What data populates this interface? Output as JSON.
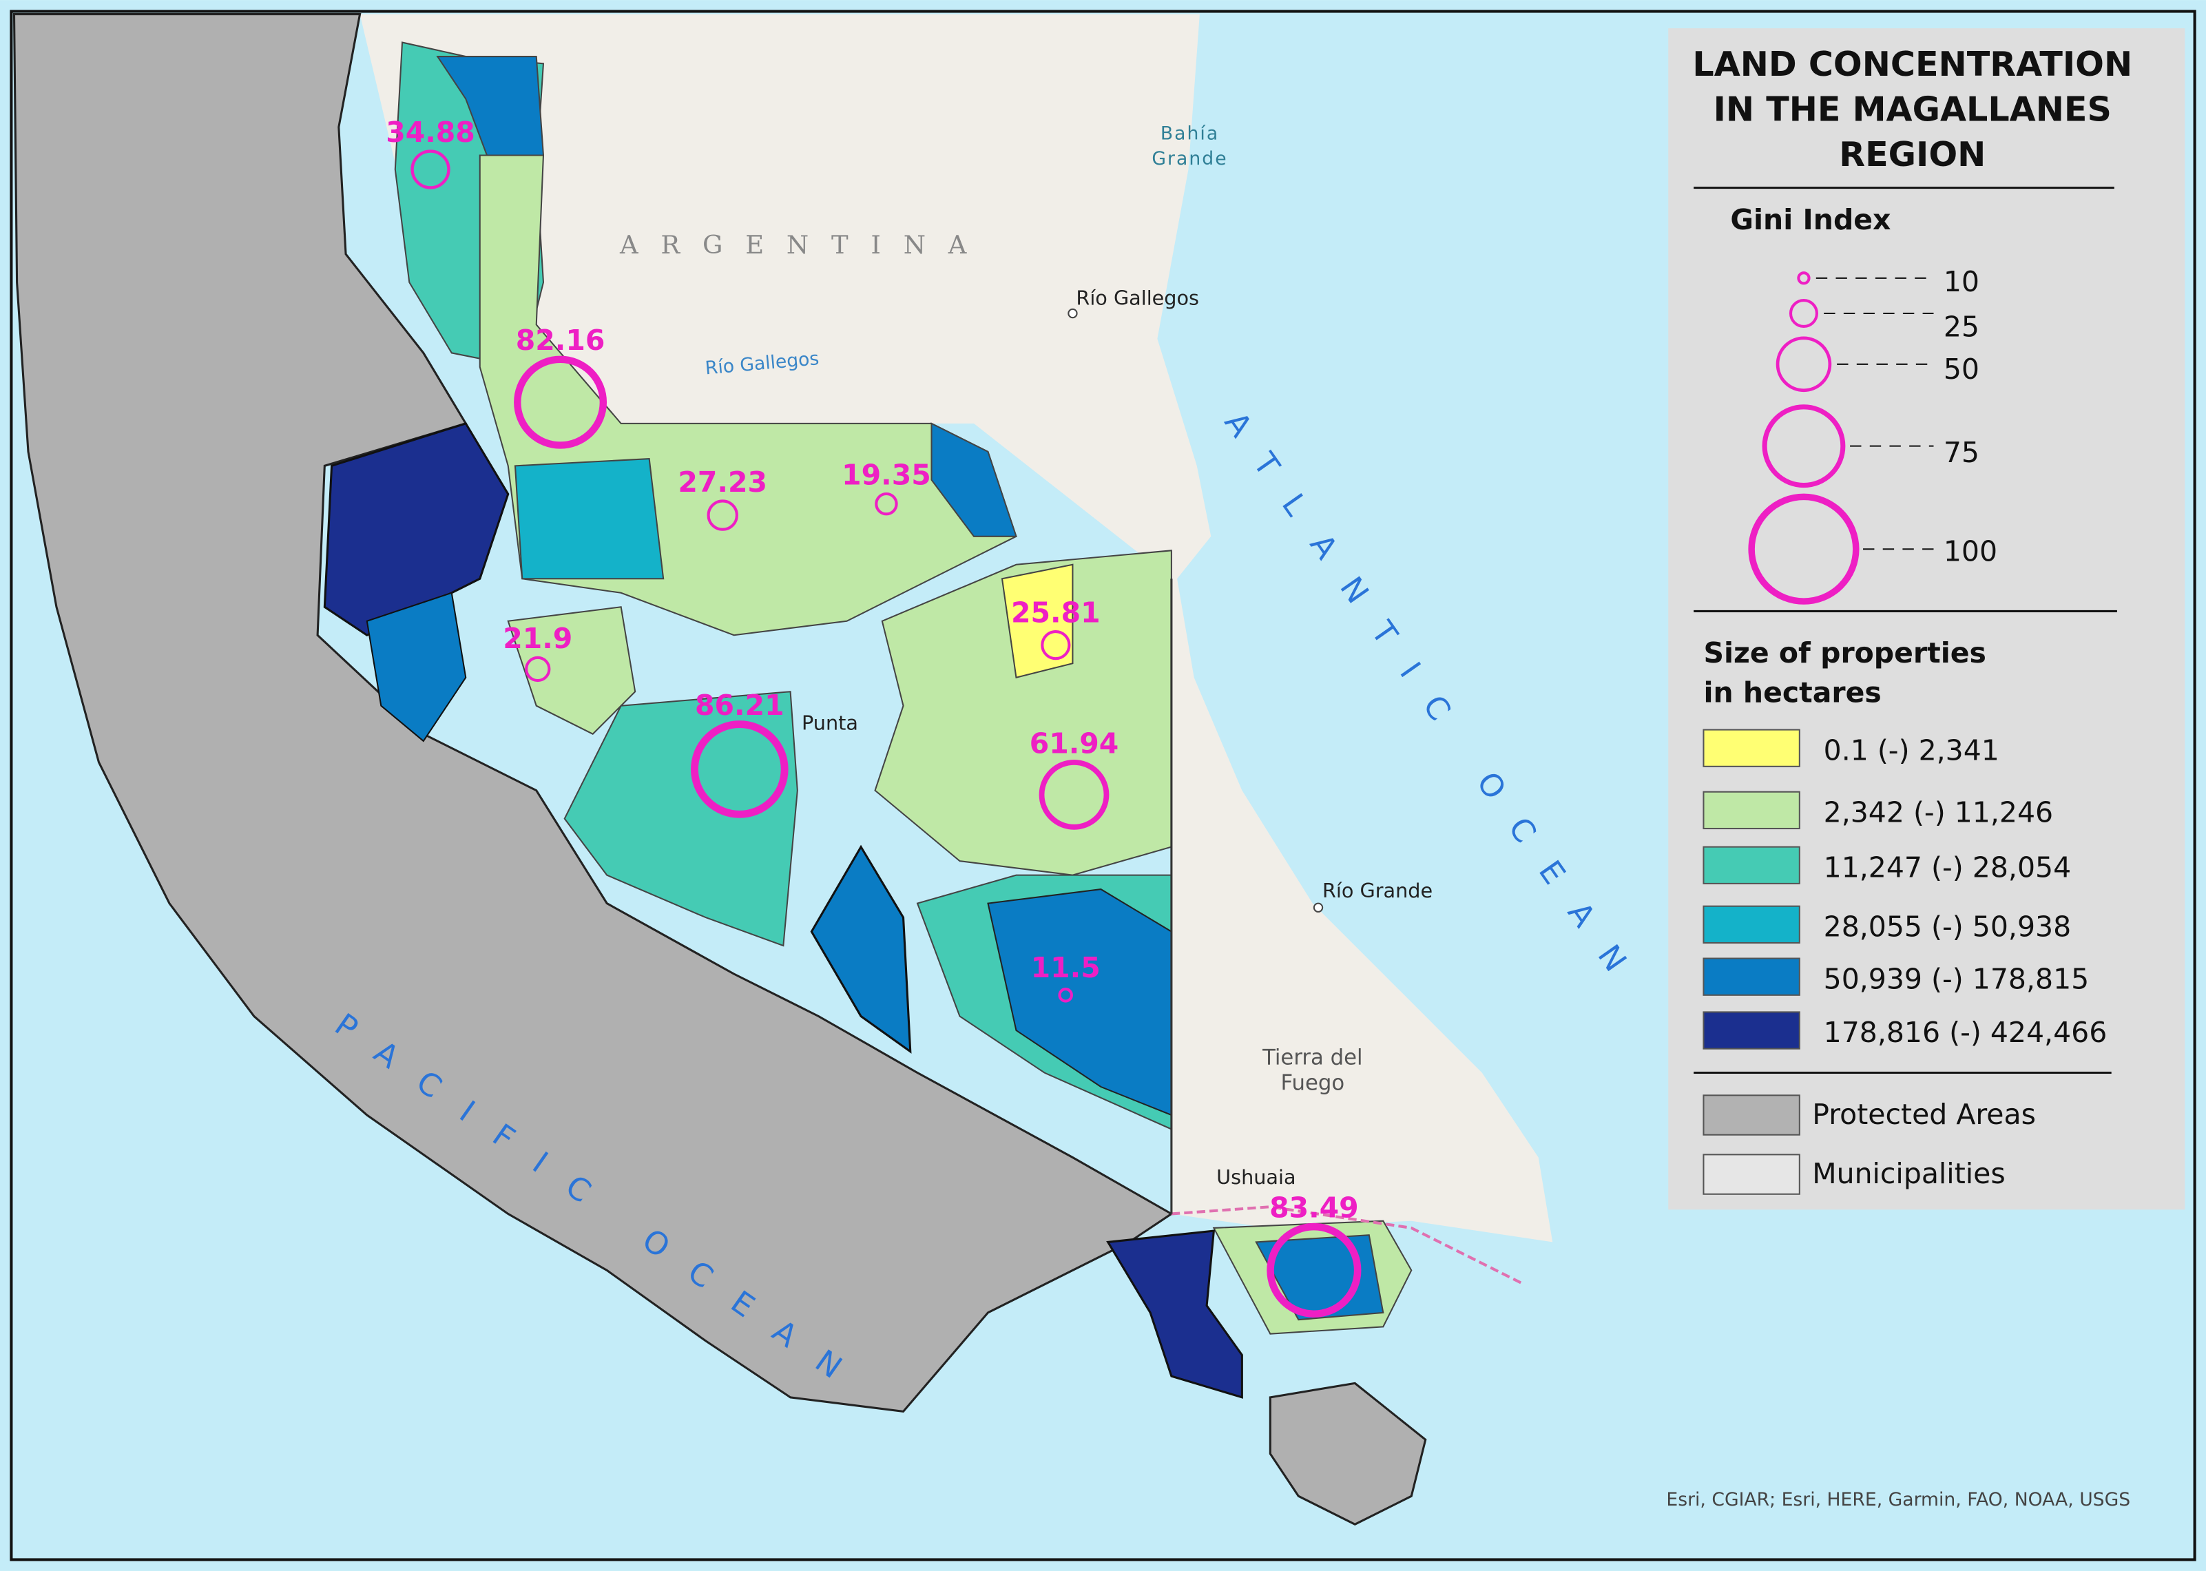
{
  "title": [
    "LAND CONCENTRATION",
    "IN THE MAGALLANES",
    "REGION"
  ],
  "legend": {
    "gini_title": "Gini Index",
    "gini_sizes": [
      10,
      25,
      50,
      75,
      100
    ],
    "size_title": [
      "Size of properties",
      "in hectares"
    ],
    "classes": [
      {
        "label": "0.1 (-) 2,341",
        "color": "#ffff73"
      },
      {
        "label": "2,342 (-) 11,246",
        "color": "#bfe8a6"
      },
      {
        "label": "11,247 (-) 28,054",
        "color": "#45cbb4"
      },
      {
        "label": "28,055 (-) 50,938",
        "color": "#14b2c9"
      },
      {
        "label": "50,939 (-) 178,815",
        "color": "#0a7cc4"
      },
      {
        "label": "178,816 (-) 424,466",
        "color": "#1b2f8f"
      }
    ],
    "other": [
      {
        "label": "Protected Areas",
        "color": "#b2b2b2"
      },
      {
        "label": "Municipalities",
        "color": "#e6e6e6"
      }
    ]
  },
  "gini_points": [
    34.88,
    82.16,
    27.23,
    19.35,
    21.9,
    25.81,
    86.21,
    61.94,
    11.5,
    83.49
  ],
  "places": [
    {
      "lines": [
        "ARGENTINA"
      ],
      "kind": "country"
    },
    {
      "lines": [
        "Bahía",
        "Grande"
      ],
      "kind": "water"
    },
    {
      "lines": [
        "Río Gallegos"
      ],
      "kind": "city"
    },
    {
      "lines": [
        "Río Gallegos"
      ],
      "kind": "river"
    },
    {
      "lines": [
        "ATLANTIC OCEAN"
      ],
      "kind": "ocean"
    },
    {
      "lines": [
        "PACIFIC OCEAN"
      ],
      "kind": "ocean"
    },
    {
      "lines": [
        "Río Grande"
      ],
      "kind": "city"
    },
    {
      "lines": [
        "Tierra del",
        "Fuego"
      ],
      "kind": "region"
    },
    {
      "lines": [
        "Ushuaia"
      ],
      "kind": "city"
    },
    {
      "lines": [
        "Punta"
      ],
      "kind": "city"
    }
  ],
  "attribution": "Esri, CGIAR; Esri, HERE, Garmin, FAO, NOAA, USGS"
}
